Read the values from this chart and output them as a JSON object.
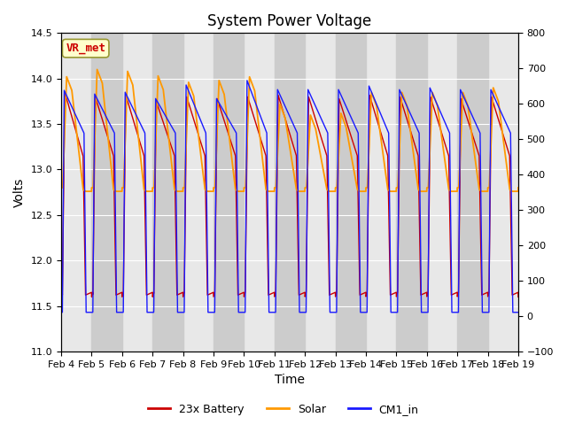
{
  "title": "System Power Voltage",
  "xlabel": "Time",
  "ylabel": "Volts",
  "ylim_left": [
    11.0,
    14.5
  ],
  "ylim_right": [
    -100,
    800
  ],
  "yticks_left": [
    11.0,
    11.5,
    12.0,
    12.5,
    13.0,
    13.5,
    14.0,
    14.5
  ],
  "yticks_right": [
    -100,
    0,
    100,
    200,
    300,
    400,
    500,
    600,
    700,
    800
  ],
  "xtick_labels": [
    "Feb 4",
    "Feb 5",
    "Feb 6",
    "Feb 7",
    "Feb 8",
    "Feb 9",
    "Feb 10",
    "Feb 11",
    "Feb 12",
    "Feb 13",
    "Feb 14",
    "Feb 15",
    "Feb 16",
    "Feb 17",
    "Feb 18",
    "Feb 19"
  ],
  "legend_labels": [
    "23x Battery",
    "Solar",
    "CM1_in"
  ],
  "line_colors": [
    "#cc0000",
    "#ff9900",
    "#1a1aff"
  ],
  "vr_met_label": "VR_met",
  "vr_met_color": "#cc0000",
  "vr_met_bg": "#ffffcc",
  "vr_met_border": "#999933",
  "background_color": "#ffffff",
  "plot_bg_light": "#e8e8e8",
  "plot_bg_dark": "#cccccc",
  "grid_color": "#ffffff",
  "n_days": 15,
  "title_fontsize": 12,
  "axis_label_fontsize": 10,
  "tick_fontsize": 8,
  "legend_fontsize": 9
}
